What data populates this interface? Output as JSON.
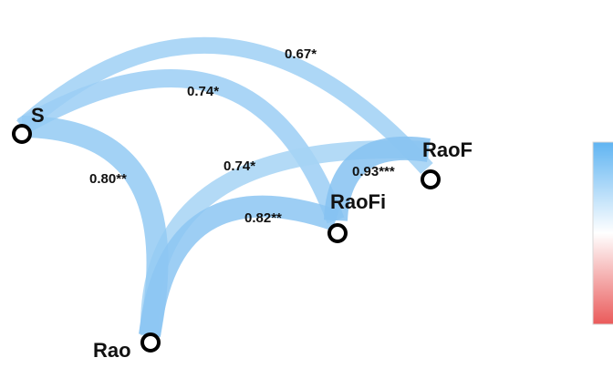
{
  "nodes": {
    "S": {
      "label": "S"
    },
    "RaoF": {
      "label": "RaoF"
    },
    "RaoFi": {
      "label": "RaoFi"
    },
    "Rao": {
      "label": "Rao"
    }
  },
  "edges": {
    "S_RaoF": {
      "from": "S",
      "to": "RaoF",
      "value": 0.67,
      "label": "0.67*"
    },
    "S_RaoFi": {
      "from": "S",
      "to": "RaoFi",
      "value": 0.74,
      "label": "0.74*"
    },
    "Rao_RaoF": {
      "from": "Rao",
      "to": "RaoF",
      "value": 0.74,
      "label": "0.74*"
    },
    "S_Rao": {
      "from": "S",
      "to": "Rao",
      "value": 0.8,
      "label": "0.80**"
    },
    "Rao_RaoFi": {
      "from": "Rao",
      "to": "RaoFi",
      "value": 0.82,
      "label": "0.82**"
    },
    "RaoFi_RaoF": {
      "from": "RaoFi",
      "to": "RaoF",
      "value": 0.93,
      "label": "0.93***"
    }
  },
  "legend": {
    "gradient_colors": [
      "#5fb4f2",
      "#ffffff",
      "#ea5a5a"
    ]
  },
  "colors": {
    "edge": "#8cc6f2",
    "node_stroke": "#000000"
  }
}
